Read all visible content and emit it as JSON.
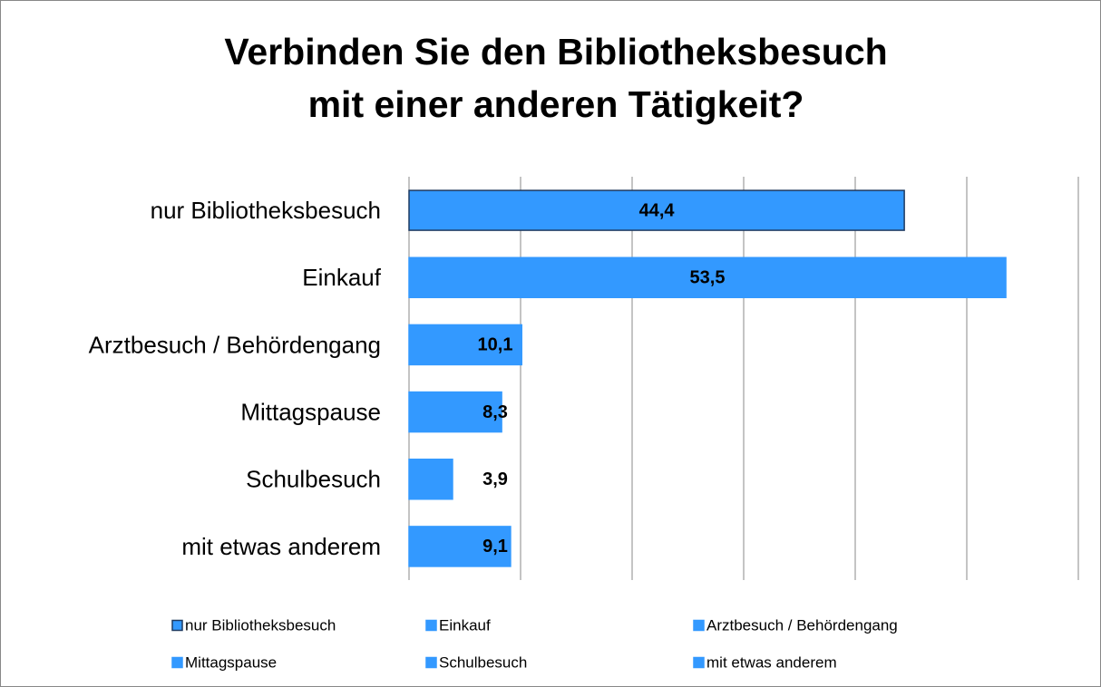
{
  "chart_data": {
    "type": "barh",
    "title": [
      "Verbinden Sie den Bibliotheksbesuch",
      "mit einer anderen Tätigkeit?"
    ],
    "categories": [
      "nur Bibliotheksbesuch",
      "Einkauf",
      "Arztbesuch / Behördengang",
      "Mittagspause",
      "Schulbesuch",
      "mit etwas anderem"
    ],
    "values": [
      44.4,
      53.5,
      10.1,
      8.3,
      3.9,
      9.1
    ],
    "value_labels": [
      "44,4",
      "53,5",
      "10,1",
      "8,3",
      "3,9",
      "9,1"
    ],
    "color": "#3399ff",
    "edgecolors": [
      "#1f3a60",
      "#3399ff",
      "#3399ff",
      "#3399ff",
      "#3399ff",
      "#3399ff"
    ],
    "xlim": [
      0,
      60
    ],
    "xticks": [
      0,
      10,
      20,
      30,
      40,
      50,
      60
    ],
    "grid": true,
    "legend": "bottom"
  }
}
